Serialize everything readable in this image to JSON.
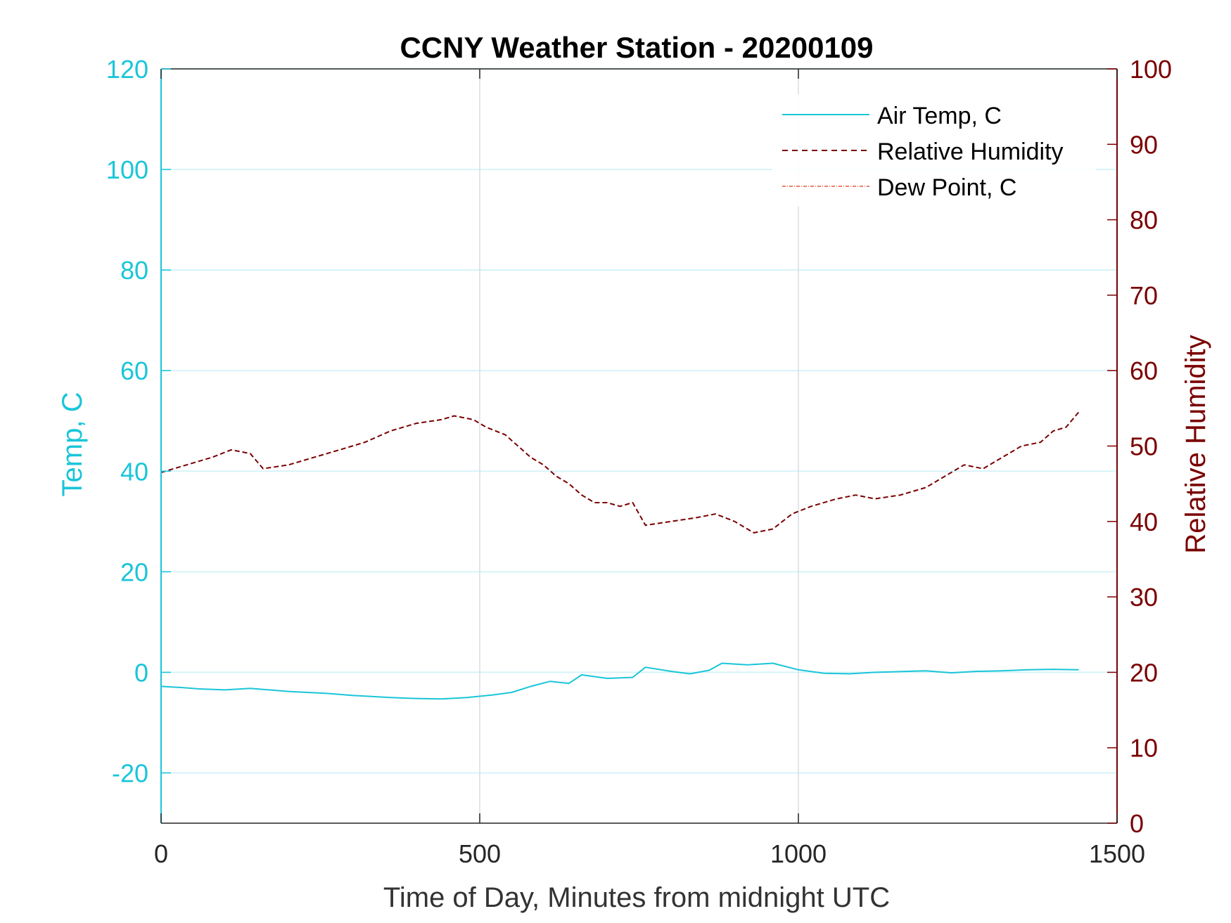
{
  "chart_data": {
    "type": "line",
    "title": "CCNY Weather Station - 20200109",
    "xlabel": "Time of Day, Minutes from midnight UTC",
    "ylabel_left": "Temp, C",
    "ylabel_right": "Relative Humidity",
    "xlim": [
      0,
      1500
    ],
    "ylim_left": [
      -30,
      120
    ],
    "ylim_right": [
      0,
      100
    ],
    "xticks": [
      0,
      500,
      1000,
      1500
    ],
    "xtick_labels": [
      "0",
      "500",
      "1000",
      "1500"
    ],
    "yticks_left": [
      -20,
      0,
      20,
      40,
      60,
      80,
      100,
      120
    ],
    "ytick_labels_left": [
      "-20",
      "0",
      "20",
      "40",
      "60",
      "80",
      "100",
      "120"
    ],
    "yticks_right": [
      0,
      10,
      20,
      30,
      40,
      50,
      60,
      70,
      80,
      90,
      100
    ],
    "ytick_labels_right": [
      "0",
      "10",
      "20",
      "30",
      "40",
      "50",
      "60",
      "70",
      "80",
      "90",
      "100"
    ],
    "grid": true,
    "legend_position": "top-right",
    "colors": {
      "left_axis": "#1ac5d9",
      "right_axis": "#7a0000",
      "air_temp": "#1ac5d9",
      "rh": "#7a0000",
      "dew_point": "#e8553c",
      "grid_h": "#d6f3f8",
      "grid_v": "#d9dde4"
    },
    "series": [
      {
        "name": "Air Temp, C",
        "axis": "left",
        "style": "solid",
        "x": [
          0,
          30,
          60,
          100,
          140,
          200,
          260,
          300,
          360,
          400,
          440,
          480,
          520,
          550,
          580,
          610,
          640,
          660,
          700,
          740,
          760,
          800,
          830,
          860,
          880,
          920,
          960,
          1000,
          1040,
          1080,
          1120,
          1200,
          1240,
          1280,
          1320,
          1360,
          1400,
          1440
        ],
        "values": [
          -2.8,
          -3.0,
          -3.3,
          -3.5,
          -3.2,
          -3.8,
          -4.2,
          -4.6,
          -5.0,
          -5.2,
          -5.3,
          -5.0,
          -4.5,
          -4.0,
          -2.8,
          -1.8,
          -2.2,
          -0.5,
          -1.2,
          -1.0,
          1.0,
          0.2,
          -0.3,
          0.4,
          1.8,
          1.5,
          1.8,
          0.5,
          -0.2,
          -0.3,
          0.0,
          0.3,
          -0.1,
          0.2,
          0.3,
          0.5,
          0.6,
          0.5
        ]
      },
      {
        "name": "Relative Humidity",
        "axis": "right",
        "style": "dashed",
        "x": [
          0,
          40,
          80,
          110,
          140,
          160,
          200,
          240,
          280,
          320,
          360,
          400,
          440,
          460,
          490,
          510,
          540,
          560,
          580,
          600,
          620,
          640,
          660,
          680,
          700,
          720,
          740,
          760,
          800,
          840,
          870,
          900,
          930,
          960,
          990,
          1020,
          1060,
          1090,
          1120,
          1160,
          1200,
          1230,
          1260,
          1290,
          1320,
          1350,
          1380,
          1400,
          1420,
          1440
        ],
        "values": [
          46.5,
          47.5,
          48.5,
          49.5,
          49.0,
          47.0,
          47.5,
          48.5,
          49.5,
          50.5,
          52.0,
          53.0,
          53.5,
          54.0,
          53.5,
          52.5,
          51.5,
          50.0,
          48.5,
          47.5,
          46.0,
          45.0,
          43.5,
          42.5,
          42.5,
          42.0,
          42.5,
          39.5,
          40.0,
          40.5,
          41.0,
          40.0,
          38.5,
          39.0,
          41.0,
          42.0,
          43.0,
          43.5,
          43.0,
          43.5,
          44.5,
          46.0,
          47.5,
          47.0,
          48.5,
          50.0,
          50.5,
          52.0,
          52.5,
          54.5
        ]
      },
      {
        "name": "Dew Point, C",
        "axis": "left",
        "style": "dashdot",
        "x": [],
        "values": []
      }
    ]
  }
}
